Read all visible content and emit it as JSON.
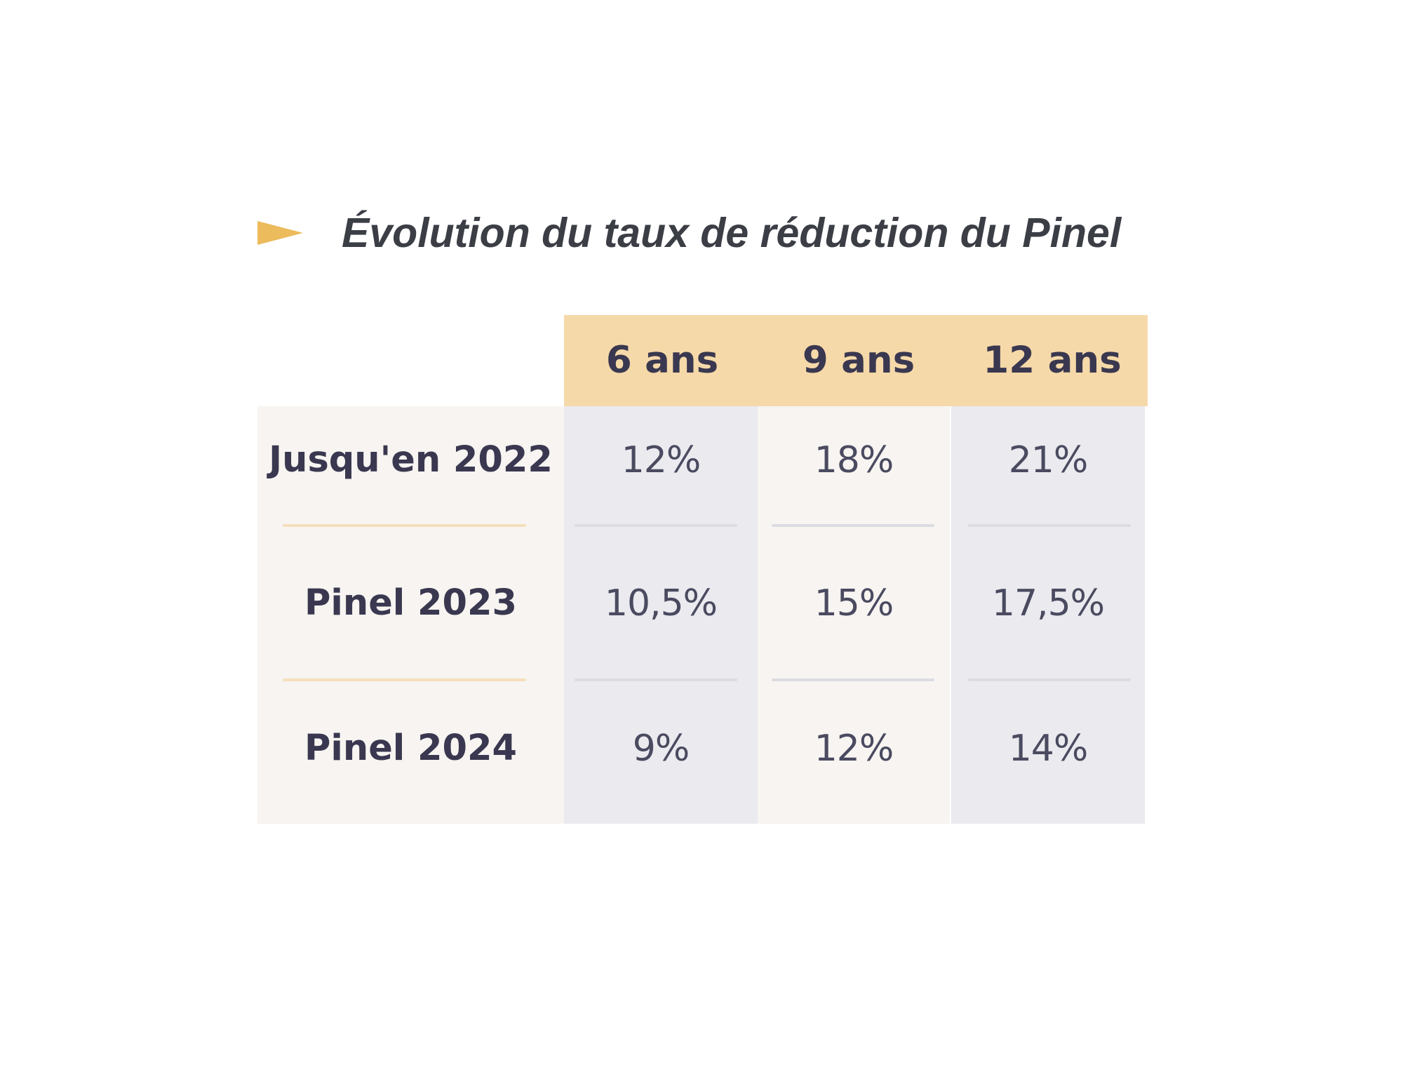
{
  "chart_data": {
    "type": "table",
    "title": "Évolution du taux de réduction du Pinel",
    "columns": [
      "6 ans",
      "9 ans",
      "12 ans"
    ],
    "rows": [
      {
        "label": "Jusqu'en 2022",
        "values": [
          "12%",
          "18%",
          "21%"
        ]
      },
      {
        "label": "Pinel 2023",
        "values": [
          "10,5%",
          "15%",
          "17,5%"
        ]
      },
      {
        "label": "Pinel 2024",
        "values": [
          "9%",
          "12%",
          "14%"
        ]
      }
    ]
  },
  "colors": {
    "accent": "#ecbb5c",
    "header_band": "#f6d9a9",
    "label_column": "#f7f4f1",
    "cool_column": "#eaeaef",
    "text_dark": "#3a3850",
    "title_text": "#3b3e45"
  },
  "icons": {
    "title_marker": "triangle-arrow-icon"
  }
}
